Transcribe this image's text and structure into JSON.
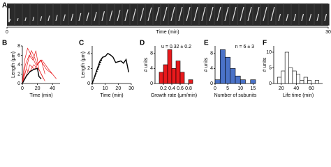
{
  "chart_data": [
    {
      "type": "timeline",
      "panel": "A",
      "x_label": "Time (min)",
      "xlim": [
        0,
        30
      ],
      "xticks": [
        0,
        30
      ]
    },
    {
      "type": "line",
      "panel": "B",
      "x_label": "Time (min)",
      "y_label": "Length (μm)",
      "xlim": [
        0,
        50
      ],
      "xticks": [
        0,
        20,
        40
      ],
      "ylim": [
        0,
        8
      ],
      "yticks": [
        0,
        2,
        4,
        6,
        8
      ],
      "series": [
        {
          "color": "#e8191c",
          "x": [
            0,
            5,
            8,
            12,
            15,
            20,
            25,
            30
          ],
          "values": [
            0,
            3,
            5,
            7,
            6,
            4,
            5,
            2
          ]
        },
        {
          "color": "#e8191c",
          "x": [
            0,
            4,
            9,
            14,
            18,
            22,
            28
          ],
          "values": [
            0,
            4,
            6,
            5,
            7,
            3,
            1
          ]
        },
        {
          "color": "#e8191c",
          "x": [
            0,
            6,
            10,
            16,
            24,
            32,
            40
          ],
          "values": [
            0,
            2,
            4,
            3,
            5,
            3,
            2
          ]
        },
        {
          "color": "#e8191c",
          "x": [
            0,
            3,
            7,
            12,
            18,
            26,
            35,
            45
          ],
          "values": [
            0,
            5,
            7.5,
            6,
            4,
            5,
            3,
            1
          ]
        },
        {
          "color": "#e8191c",
          "x": [
            0,
            5,
            10,
            15,
            22,
            30
          ],
          "values": [
            0,
            3,
            2.5,
            4,
            3,
            0.5
          ]
        },
        {
          "color": "#000000",
          "x": [
            0,
            5,
            10,
            15,
            20,
            22,
            25
          ],
          "values": [
            0,
            1.5,
            2.5,
            3,
            3.2,
            1.5,
            1
          ]
        }
      ]
    },
    {
      "type": "line",
      "panel": "C",
      "x_label": "Time (min)",
      "y_label": "Length (μm)",
      "xlim": [
        0,
        30
      ],
      "xticks": [
        0,
        10,
        20,
        30
      ],
      "ylim": [
        0,
        5
      ],
      "yticks": [
        0,
        2,
        4
      ],
      "series": [
        {
          "color": "#000000",
          "x": [
            0,
            3,
            6,
            8,
            10,
            12,
            14,
            16,
            18,
            20,
            22,
            24,
            26,
            28
          ],
          "values": [
            0,
            1.5,
            3,
            3.5,
            3.6,
            4,
            3.8,
            3.5,
            2.8,
            2.9,
            3,
            2.7,
            3.2,
            1.5
          ]
        },
        {
          "color": "#000000",
          "dashed": true,
          "x": [
            0,
            8
          ],
          "values": [
            0,
            3.5
          ]
        }
      ]
    },
    {
      "type": "histogram",
      "panel": "D",
      "x_label": "Growth rate (μm/min)",
      "y_label": "# units",
      "annotation": "u = 0.32 ± 0.2",
      "color": "#e8191c",
      "bins": [
        0.1,
        0.2,
        0.3,
        0.4,
        0.5,
        0.6,
        0.7,
        0.8,
        0.9
      ],
      "counts": [
        3,
        5,
        9,
        4,
        6,
        3,
        0,
        1
      ],
      "xlim": [
        0,
        0.9
      ],
      "xticks": [
        0.2,
        0.4,
        0.6,
        0.8
      ],
      "ylim": [
        0,
        10
      ],
      "yticks": [
        0,
        4,
        8
      ]
    },
    {
      "type": "histogram",
      "panel": "E",
      "x_label": "Number of subunits",
      "y_label": "# units",
      "annotation": "n = 6 ± 3",
      "color": "#4a72c8",
      "bins": [
        0,
        2,
        4,
        6,
        8,
        10,
        12,
        14,
        16
      ],
      "counts": [
        1,
        9,
        7,
        4,
        2,
        1,
        0,
        1
      ],
      "xlim": [
        0,
        16
      ],
      "xticks": [
        0,
        5,
        10,
        15
      ],
      "ylim": [
        0,
        10
      ],
      "yticks": [
        0,
        4,
        8
      ]
    },
    {
      "type": "histogram",
      "panel": "F",
      "x_label": "Life time (min)",
      "y_label": "# units",
      "color": "#ffffff",
      "bins": [
        15,
        20,
        25,
        30,
        35,
        40,
        45,
        50,
        55,
        60,
        65,
        70
      ],
      "counts": [
        2,
        4,
        10,
        5,
        4,
        3,
        1,
        2,
        1,
        0,
        1
      ],
      "xlim": [
        10,
        75
      ],
      "xticks": [
        20,
        40,
        60
      ],
      "ylim": [
        0,
        12
      ],
      "yticks": [
        0,
        5,
        10
      ]
    }
  ]
}
